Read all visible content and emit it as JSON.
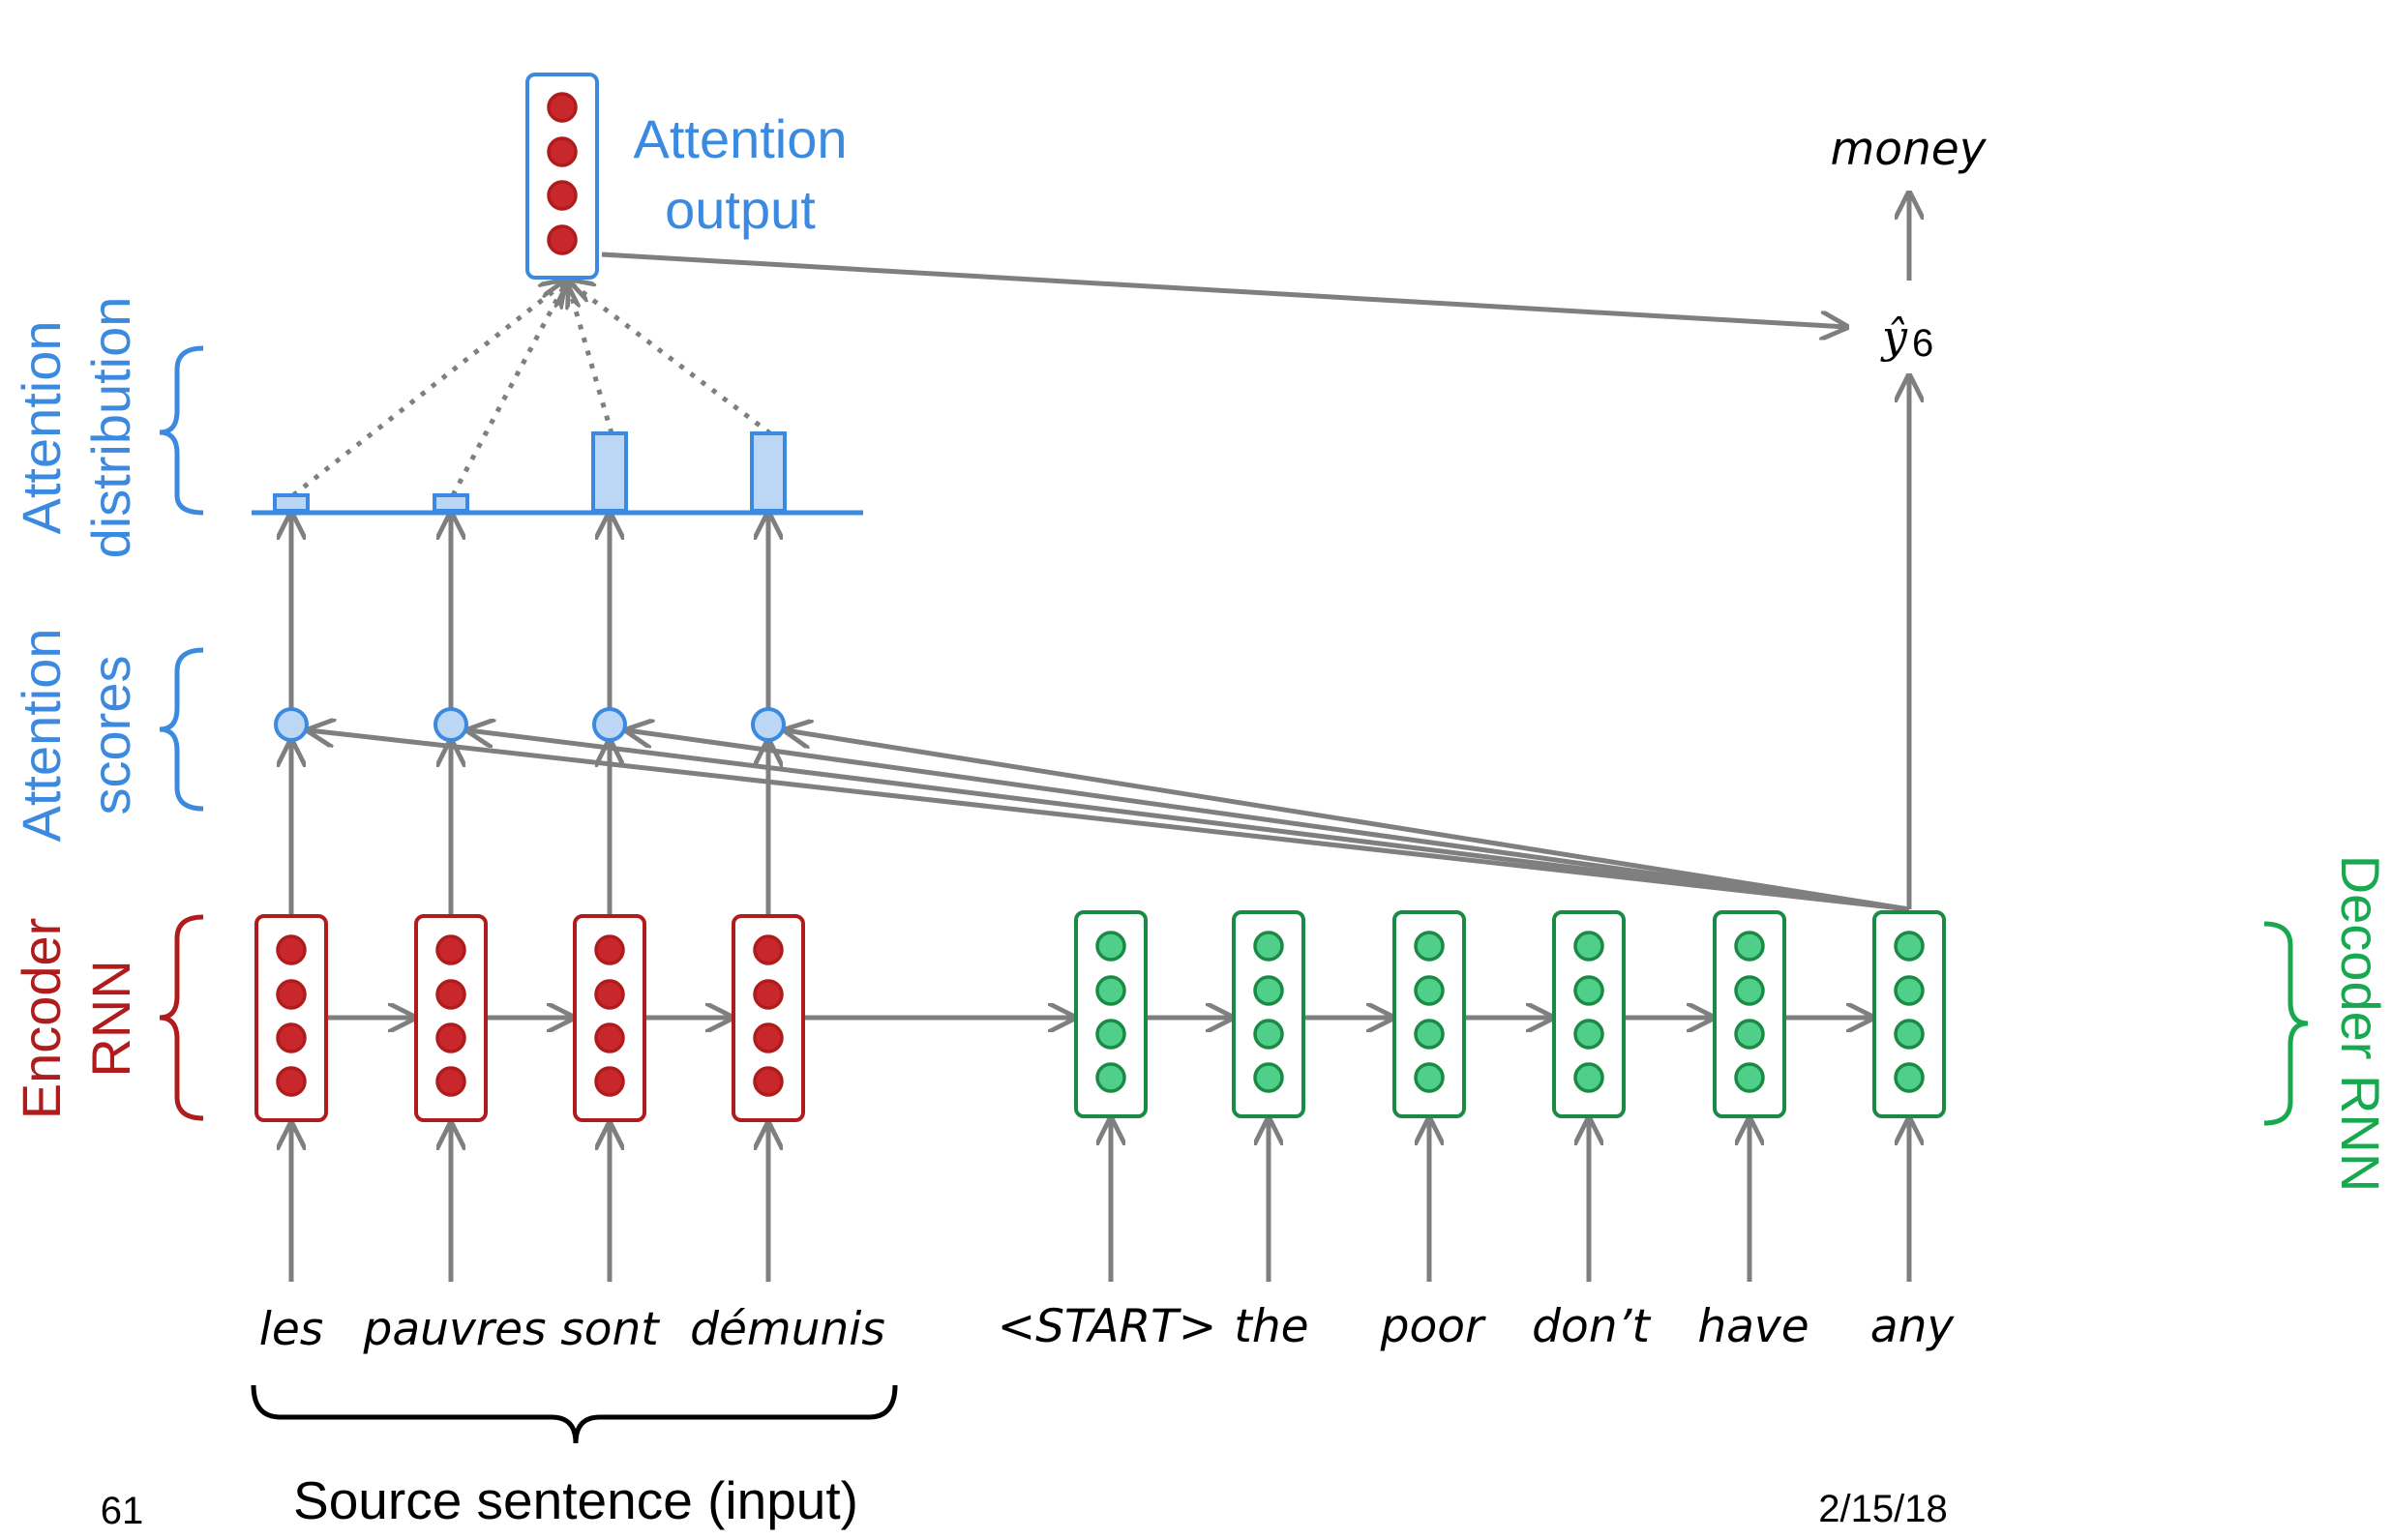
{
  "attention_output_label": [
    "Attention",
    "output"
  ],
  "attention_distribution_label": [
    "Attention",
    "distribution"
  ],
  "attention_scores_label": [
    "Attention",
    "scores"
  ],
  "encoder_label": [
    "Encoder",
    "RNN"
  ],
  "decoder_label": "Decoder RNN",
  "output_word": "money",
  "prediction_symbol": "ŷ",
  "prediction_subscript": "6",
  "source_words": [
    "les",
    "pauvres",
    "sont",
    "démunis"
  ],
  "target_words": [
    "<START>",
    "the",
    "poor",
    "don’t",
    "have",
    "any"
  ],
  "source_caption": "Source sentence (input)",
  "slide_number": "61",
  "date": "2/15/18",
  "attention_weights": [
    0.06,
    0.06,
    0.3,
    0.3
  ],
  "colors": {
    "encoder_dark": "#b01c1c",
    "encoder_fill": "#c8282c",
    "decoder_dark": "#1a8a45",
    "decoder_fill": "#4fcf8a",
    "attention_blue": "#3c8ae0",
    "attention_fill": "#bcd7f5",
    "arrow_gray": "#7f7f7f"
  }
}
